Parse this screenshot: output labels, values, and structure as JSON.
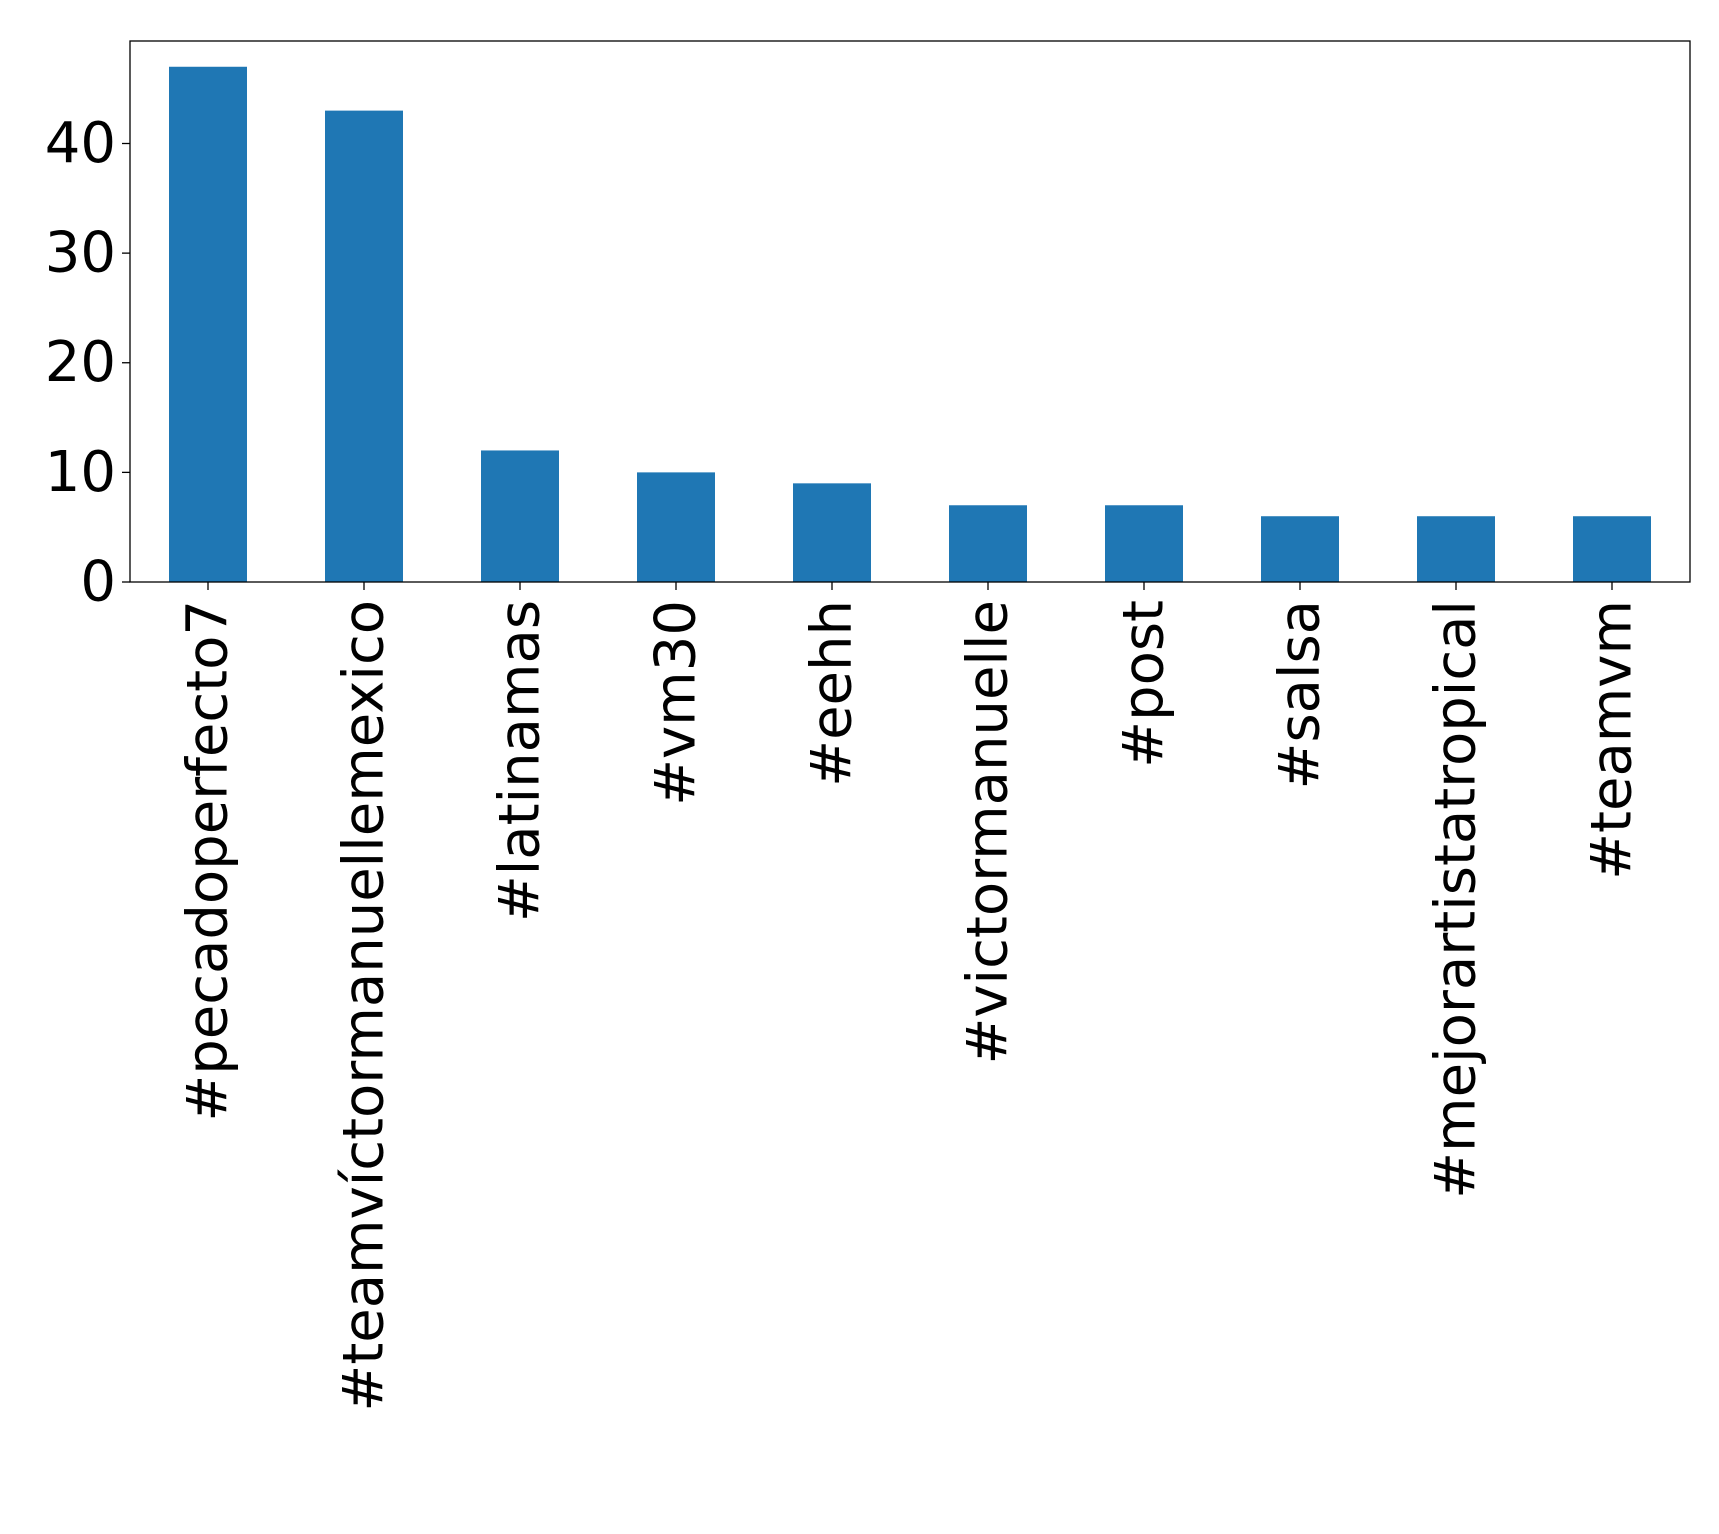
{
  "chart_data": {
    "type": "bar",
    "categories": [
      "#pecadoperfecto7",
      "#teamvíctormanuellemexico",
      "#latinamas",
      "#vm30",
      "#eehh",
      "#victormanuelle",
      "#post",
      "#salsa",
      "#mejorartistatropical",
      "#teamvm"
    ],
    "values": [
      47,
      43,
      12,
      10,
      9,
      7,
      7,
      6,
      6,
      6
    ],
    "ylim": [
      0,
      49.35
    ],
    "yticks": [
      0,
      10,
      20,
      30,
      40
    ],
    "title": "",
    "xlabel": "",
    "ylabel": "",
    "grid": false,
    "bar_color": "#1f77b4",
    "label_rotation": "vertical"
  }
}
